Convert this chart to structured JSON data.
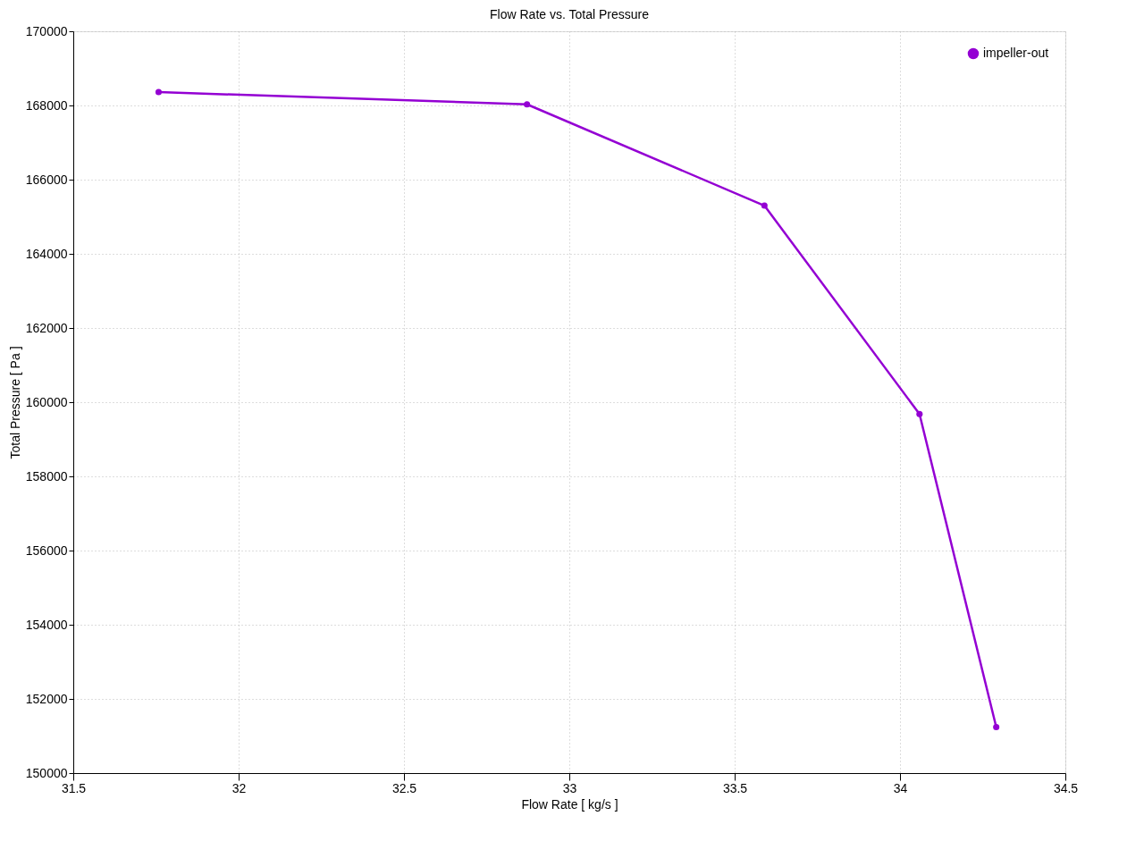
{
  "chart_data": {
    "type": "line",
    "title": "Flow Rate vs. Total Pressure",
    "xlabel": "Flow Rate [ kg/s ]",
    "ylabel": "Total Pressure [ Pa ]",
    "x": [
      31.758,
      32.872,
      33.59,
      34.059,
      34.291
    ],
    "series": [
      {
        "name": "impeller-out",
        "color": "#9400d3",
        "values": [
          168360,
          168030,
          165300,
          159680,
          151240
        ]
      }
    ],
    "xlim": [
      31.5,
      34.5
    ],
    "xticks": [
      31.5,
      32,
      32.5,
      33,
      33.5,
      34,
      34.5
    ],
    "ylim": [
      150000,
      170000
    ],
    "yticks": [
      150000,
      152000,
      154000,
      156000,
      158000,
      160000,
      162000,
      164000,
      166000,
      168000,
      170000
    ],
    "grid": true,
    "legend": "top right",
    "marker": "circle",
    "line_style": "solid"
  }
}
